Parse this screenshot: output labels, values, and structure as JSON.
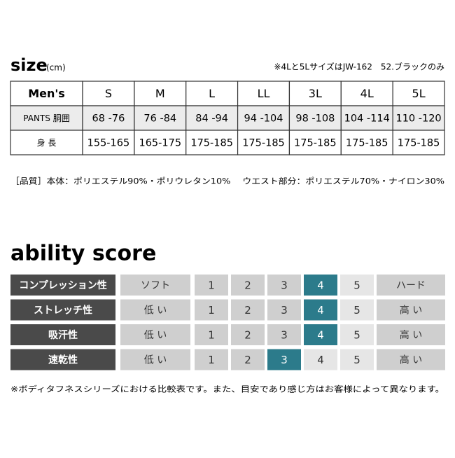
{
  "size": {
    "title": "size",
    "unit": "(cm)",
    "note": "※4Lと5LサイズはJW-162　52.ブラックのみ",
    "table": {
      "header": [
        "Men's",
        "S",
        "M",
        "L",
        "LL",
        "3L",
        "4L",
        "5L"
      ],
      "rows": [
        [
          "PANTS 胴囲",
          "68 -76",
          "76 -84",
          "84 -94",
          "94 -104",
          "98 -108",
          "104 -114",
          "110 -120"
        ],
        [
          "身 長",
          "155-165",
          "165-175",
          "175-185",
          "175-185",
          "175-185",
          "175-185",
          "175-185"
        ]
      ]
    },
    "material": "［品質］本体：ポリエステル90%・ポリウレタン10%　 ウエスト部分：ポリエステル70%・ナイロン30%"
  },
  "ability": {
    "title": "ability score",
    "scale": [
      1,
      2,
      3,
      4,
      5
    ],
    "rows": [
      {
        "label": "コンプレッション性",
        "low": "ソフト",
        "high": "ハード",
        "score": 4
      },
      {
        "label": "ストレッチ性",
        "low": "低 い",
        "high": "高 い",
        "score": 4
      },
      {
        "label": "吸汗性",
        "low": "低 い",
        "high": "高 い",
        "score": 4
      },
      {
        "label": "速乾性",
        "low": "低 い",
        "high": "高 い",
        "score": 3
      }
    ],
    "note": "※ボディタフネスシリーズにおける比較表です。また、目安であり感じ方はお客様によって異なります。"
  }
}
